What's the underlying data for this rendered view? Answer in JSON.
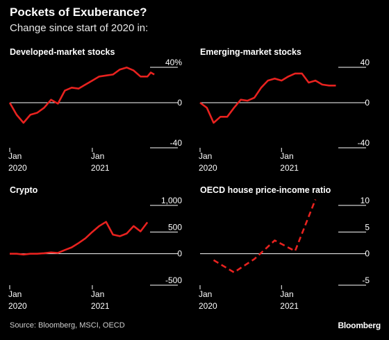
{
  "header": {
    "title": "Pockets of Exuberance?",
    "subtitle": "Change since start of 2020 in:"
  },
  "footer": {
    "source": "Source: Bloomberg, MSCI, OECD",
    "brand": "Bloomberg"
  },
  "colors": {
    "line": "#e8221f",
    "axis": "#ffffff",
    "background": "#000000"
  },
  "chart_data": [
    {
      "type": "line",
      "title": "Developed-market stocks",
      "line_style": "solid",
      "ylim": [
        -40,
        40
      ],
      "yticks": [
        {
          "value": 40,
          "label": "40%"
        },
        {
          "value": 0,
          "label": "0"
        },
        {
          "value": -40,
          "label": "-40"
        }
      ],
      "xlim": [
        0,
        22
      ],
      "xticks": [
        {
          "value": 0,
          "label": "Jan\n2020"
        },
        {
          "value": 12,
          "label": "Jan\n2021"
        }
      ],
      "series": [
        {
          "x": [
            0,
            1,
            2,
            3,
            4,
            5,
            6,
            7,
            8,
            9,
            10,
            11,
            12,
            13,
            14,
            15,
            16,
            17,
            18,
            19,
            20,
            20.5,
            21
          ],
          "y": [
            0,
            -12,
            -20,
            -12,
            -10,
            -5,
            3,
            -1,
            12,
            15,
            14,
            18,
            22,
            26,
            27,
            28,
            33,
            35,
            32,
            26,
            26,
            30,
            28
          ]
        }
      ]
    },
    {
      "type": "line",
      "title": "Emerging-market stocks",
      "line_style": "solid",
      "ylim": [
        -40,
        40
      ],
      "yticks": [
        {
          "value": 40,
          "label": "40"
        },
        {
          "value": 0,
          "label": "0"
        },
        {
          "value": -40,
          "label": "-40"
        }
      ],
      "xlim": [
        0,
        22
      ],
      "xticks": [
        {
          "value": 0,
          "label": "Jan\n2020"
        },
        {
          "value": 12,
          "label": "Jan\n2021"
        }
      ],
      "series": [
        {
          "x": [
            0,
            1,
            2,
            3,
            4,
            5,
            6,
            7,
            8,
            9,
            10,
            11,
            12,
            13,
            14,
            15,
            16,
            17,
            18,
            19,
            20
          ],
          "y": [
            0,
            -5,
            -20,
            -14,
            -14,
            -5,
            3,
            2,
            5,
            15,
            22,
            24,
            22,
            26,
            29,
            29,
            20,
            22,
            18,
            17,
            17
          ]
        }
      ]
    },
    {
      "type": "line",
      "title": "Crypto",
      "line_style": "solid",
      "ylim": [
        -500,
        1000
      ],
      "yticks": [
        {
          "value": 1000,
          "label": "1,000"
        },
        {
          "value": 500,
          "label": "500"
        },
        {
          "value": 0,
          "label": "0"
        },
        {
          "value": -500,
          "label": "-500"
        }
      ],
      "xlim": [
        0,
        22
      ],
      "xticks": [
        {
          "value": 0,
          "label": "Jan\n2020"
        },
        {
          "value": 12,
          "label": "Jan\n2021"
        }
      ],
      "series": [
        {
          "x": [
            0,
            1,
            2,
            3,
            4,
            5,
            6,
            7,
            8,
            9,
            10,
            11,
            12,
            13,
            14,
            15,
            16,
            17,
            18,
            19,
            20
          ],
          "y": [
            0,
            0,
            -15,
            0,
            0,
            10,
            25,
            15,
            70,
            120,
            200,
            290,
            410,
            520,
            600,
            360,
            330,
            380,
            520,
            420,
            590
          ]
        }
      ]
    },
    {
      "type": "line",
      "title": "OECD house price-income ratio",
      "line_style": "dashed",
      "ylim": [
        -5,
        10
      ],
      "yticks": [
        {
          "value": 10,
          "label": "10"
        },
        {
          "value": 5,
          "label": "5"
        },
        {
          "value": 0,
          "label": "0"
        },
        {
          "value": -5,
          "label": "-5"
        }
      ],
      "xlim": [
        0,
        22
      ],
      "xticks": [
        {
          "value": 0,
          "label": "Jan\n2020"
        },
        {
          "value": 12,
          "label": "Jan\n2021"
        }
      ],
      "series": [
        {
          "x": [
            2,
            5,
            8,
            11,
            14,
            17
          ],
          "y": [
            -1.2,
            -3.5,
            -1.0,
            2.5,
            0.5,
            10.2
          ]
        }
      ]
    }
  ]
}
